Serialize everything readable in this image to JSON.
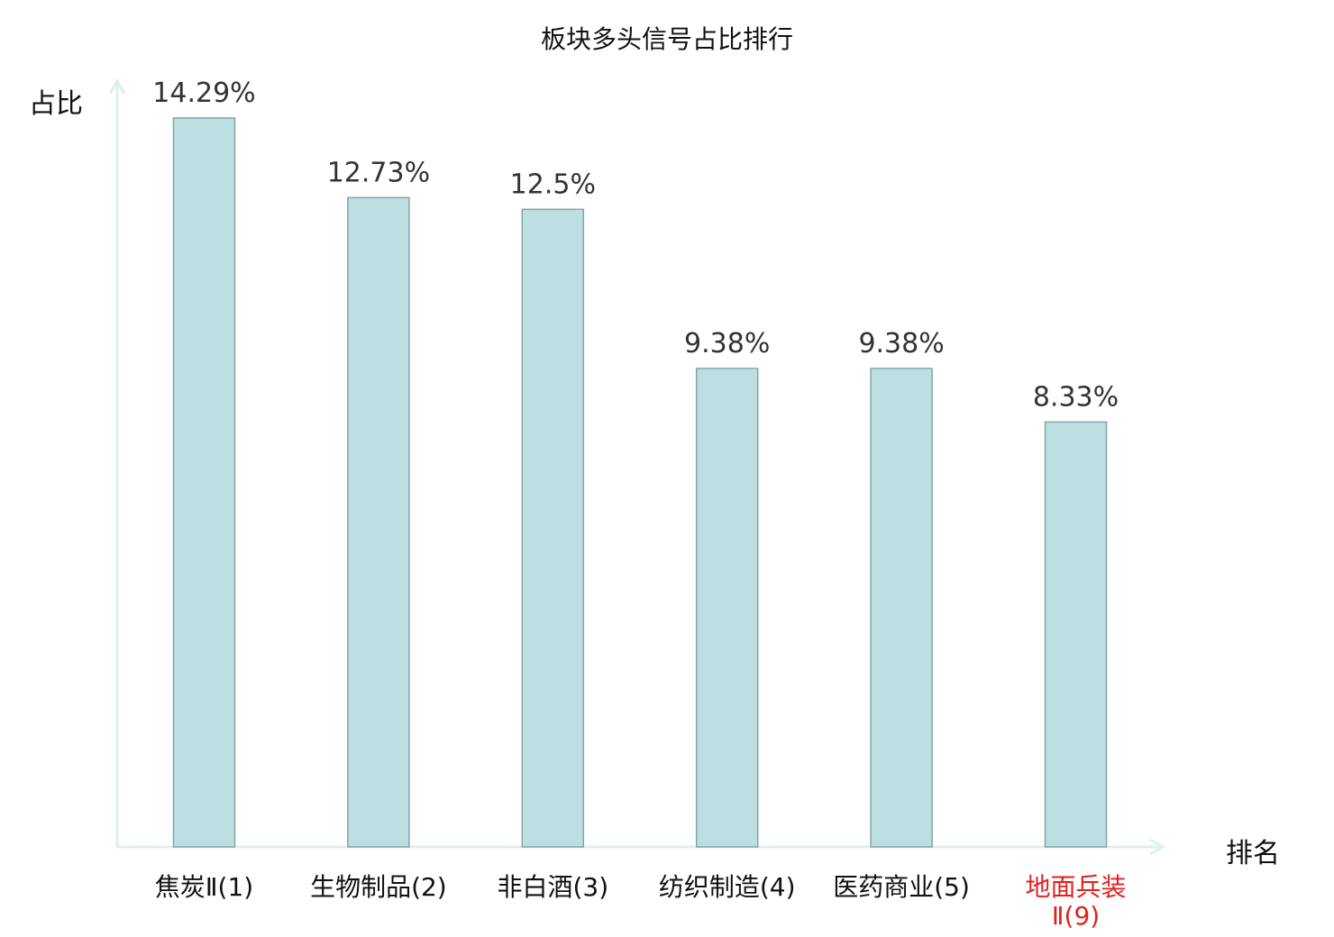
{
  "chart_data": {
    "type": "bar",
    "title": "板块多头信号占比排行",
    "xlabel": "排名",
    "ylabel": "占比",
    "categories": [
      "焦炭Ⅱ(1)",
      "生物制品(2)",
      "非白酒(3)",
      "纺织制造(4)",
      "医药商业(5)",
      "地面兵装Ⅱ(9)"
    ],
    "values": [
      14.29,
      12.73,
      12.5,
      9.38,
      9.38,
      8.33
    ],
    "value_labels": [
      "14.29%",
      "12.73%",
      "12.5%",
      "9.38%",
      "9.38%",
      "8.33%"
    ],
    "ylim": [
      0,
      14.29
    ],
    "grid": false,
    "highlight_index": 5,
    "highlight_label_lines": [
      "地面兵装",
      "Ⅱ(9)"
    ]
  },
  "colors": {
    "bar_fill": "#bce0e2",
    "bar_stroke": "#85a5a8",
    "axis": "#dcf0ee",
    "label_text": "#333333",
    "highlight_text": "#e0221f",
    "text": "#111111"
  }
}
